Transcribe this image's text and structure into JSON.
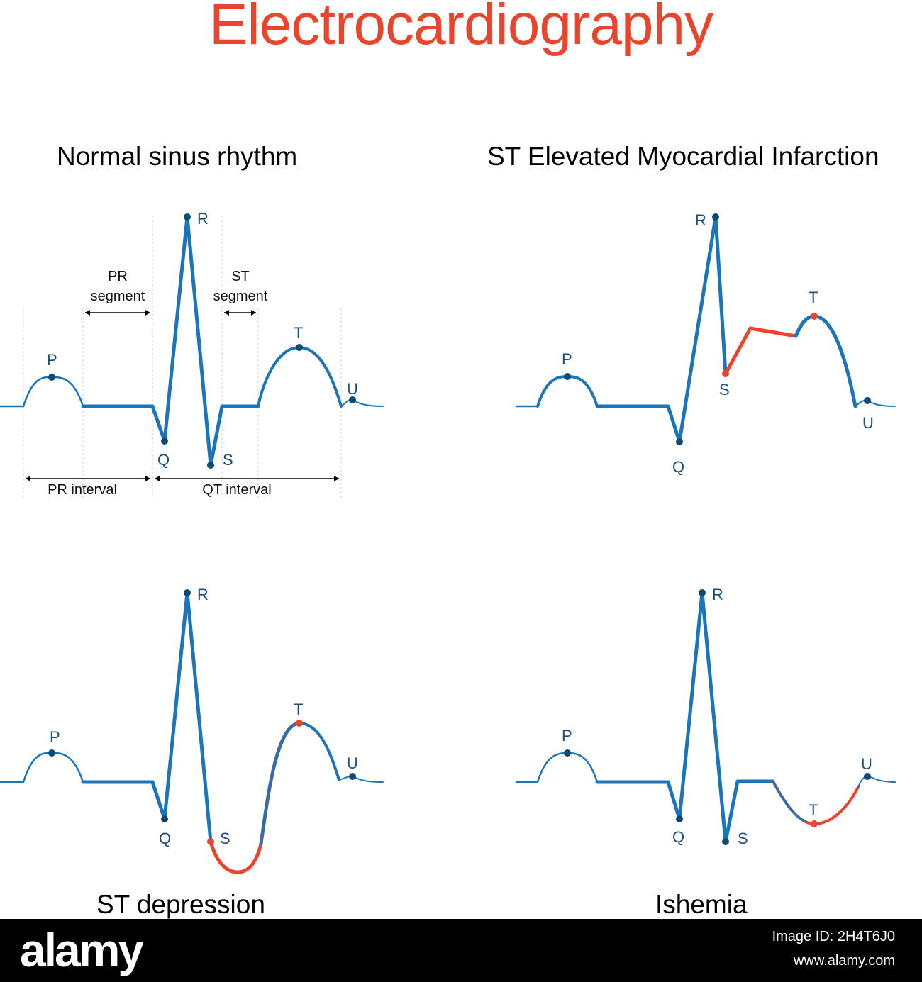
{
  "title": "Electrocardiography",
  "colors": {
    "title": "#e8452c",
    "wave": "#1b75bb",
    "points": "#0e4a73",
    "highlight": "#e8452c",
    "labels": "#1c4f7c"
  },
  "panels": [
    {
      "title": "Normal sinus rhythm",
      "waves": {
        "P": "P",
        "Q": "Q",
        "R": "R",
        "S": "S",
        "T": "T",
        "U": "U"
      },
      "annotations": {
        "pr_segment": [
          "PR",
          "segment"
        ],
        "st_segment": [
          "ST",
          "segment"
        ],
        "pr_interval": "PR interval",
        "qt_interval": "QT interval"
      }
    },
    {
      "title": "ST Elevated Myocardial Infarction",
      "waves": {
        "P": "P",
        "Q": "Q",
        "R": "R",
        "S": "S",
        "T": "T",
        "U": "U"
      }
    },
    {
      "title": "ST depression",
      "waves": {
        "P": "P",
        "Q": "Q",
        "R": "R",
        "S": "S",
        "T": "T",
        "U": "U"
      }
    },
    {
      "title": "Ishemia",
      "waves": {
        "P": "P",
        "Q": "Q",
        "R": "R",
        "S": "S",
        "T": "T",
        "U": "U"
      }
    }
  ],
  "footer": {
    "brand": "alamy",
    "image_id": "Image ID: 2H4T6J0",
    "site": "www.alamy.com"
  }
}
